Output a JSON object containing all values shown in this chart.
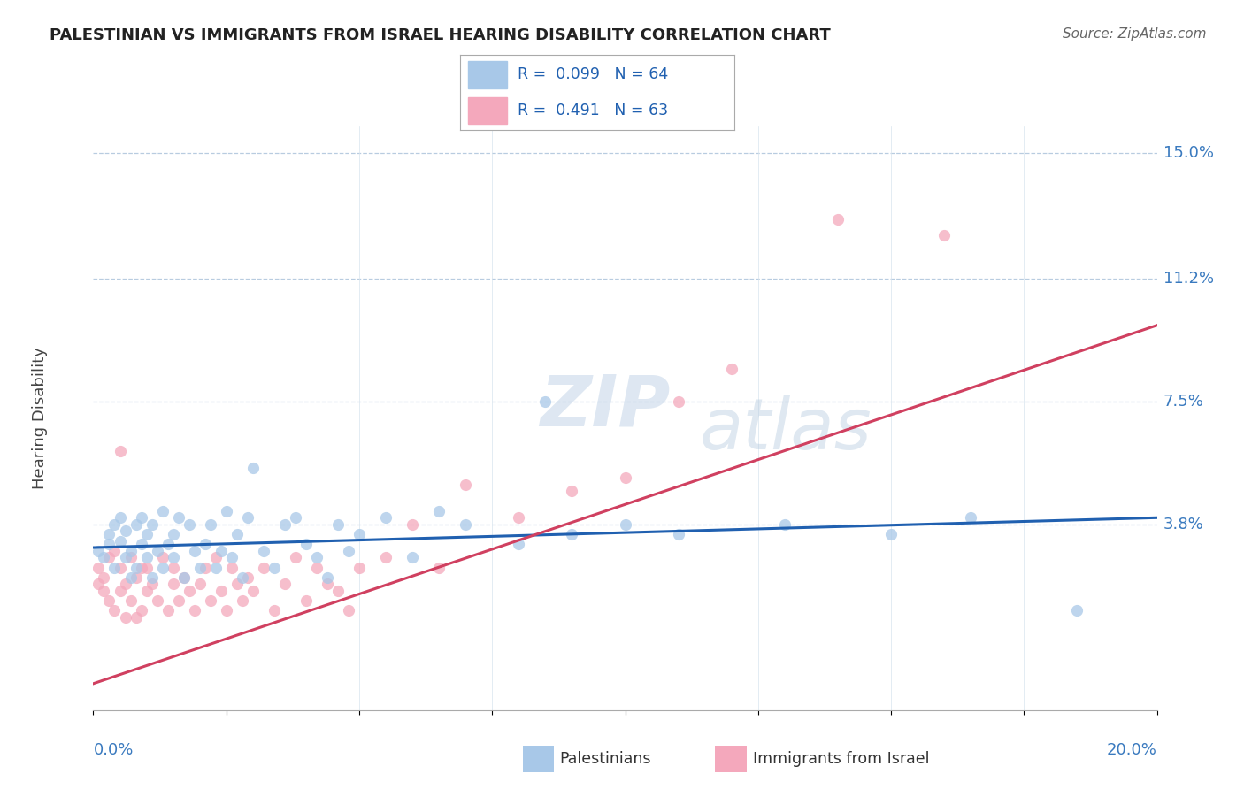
{
  "title": "PALESTINIAN VS IMMIGRANTS FROM ISRAEL HEARING DISABILITY CORRELATION CHART",
  "source": "Source: ZipAtlas.com",
  "ylabel": "Hearing Disability",
  "xmin": 0.0,
  "xmax": 0.2,
  "ymin": -0.018,
  "ymax": 0.158,
  "right_yticklabels": [
    "3.8%",
    "7.5%",
    "11.2%",
    "15.0%"
  ],
  "right_ytick_vals": [
    0.038,
    0.075,
    0.112,
    0.15
  ],
  "blue_color": "#a8c8e8",
  "pink_color": "#f4a8bc",
  "trend_blue": "#2060b0",
  "trend_pink": "#d04060",
  "watermark_zip": "ZIP",
  "watermark_atlas": "atlas",
  "blue_trend_x0": 0.0,
  "blue_trend_y0": 0.031,
  "blue_trend_x1": 0.2,
  "blue_trend_y1": 0.04,
  "pink_trend_x0": 0.0,
  "pink_trend_y0": -0.01,
  "pink_trend_x1": 0.2,
  "pink_trend_y1": 0.098,
  "legend_text_color": "#2060b0",
  "legend_r_color": "#333333",
  "blue_x": [
    0.001,
    0.002,
    0.003,
    0.003,
    0.004,
    0.004,
    0.005,
    0.005,
    0.006,
    0.006,
    0.007,
    0.007,
    0.008,
    0.008,
    0.009,
    0.009,
    0.01,
    0.01,
    0.011,
    0.011,
    0.012,
    0.013,
    0.013,
    0.014,
    0.015,
    0.015,
    0.016,
    0.017,
    0.018,
    0.019,
    0.02,
    0.021,
    0.022,
    0.023,
    0.024,
    0.025,
    0.026,
    0.027,
    0.028,
    0.029,
    0.03,
    0.032,
    0.034,
    0.036,
    0.038,
    0.04,
    0.042,
    0.044,
    0.046,
    0.048,
    0.05,
    0.055,
    0.06,
    0.065,
    0.07,
    0.08,
    0.085,
    0.09,
    0.1,
    0.11,
    0.13,
    0.15,
    0.165,
    0.185
  ],
  "blue_y": [
    0.03,
    0.028,
    0.032,
    0.035,
    0.025,
    0.038,
    0.04,
    0.033,
    0.028,
    0.036,
    0.022,
    0.03,
    0.038,
    0.025,
    0.032,
    0.04,
    0.028,
    0.035,
    0.022,
    0.038,
    0.03,
    0.025,
    0.042,
    0.032,
    0.028,
    0.035,
    0.04,
    0.022,
    0.038,
    0.03,
    0.025,
    0.032,
    0.038,
    0.025,
    0.03,
    0.042,
    0.028,
    0.035,
    0.022,
    0.04,
    0.055,
    0.03,
    0.025,
    0.038,
    0.04,
    0.032,
    0.028,
    0.022,
    0.038,
    0.03,
    0.035,
    0.04,
    0.028,
    0.042,
    0.038,
    0.032,
    0.075,
    0.035,
    0.038,
    0.035,
    0.038,
    0.035,
    0.04,
    0.012
  ],
  "pink_x": [
    0.001,
    0.001,
    0.002,
    0.002,
    0.003,
    0.003,
    0.004,
    0.004,
    0.005,
    0.005,
    0.006,
    0.006,
    0.007,
    0.007,
    0.008,
    0.008,
    0.009,
    0.009,
    0.01,
    0.01,
    0.011,
    0.012,
    0.013,
    0.014,
    0.015,
    0.015,
    0.016,
    0.017,
    0.018,
    0.019,
    0.02,
    0.021,
    0.022,
    0.023,
    0.024,
    0.025,
    0.026,
    0.027,
    0.028,
    0.029,
    0.03,
    0.032,
    0.034,
    0.036,
    0.038,
    0.04,
    0.042,
    0.044,
    0.046,
    0.048,
    0.05,
    0.055,
    0.06,
    0.065,
    0.07,
    0.08,
    0.09,
    0.1,
    0.11,
    0.12,
    0.14,
    0.16,
    0.005
  ],
  "pink_y": [
    0.025,
    0.02,
    0.018,
    0.022,
    0.028,
    0.015,
    0.03,
    0.012,
    0.025,
    0.018,
    0.02,
    0.01,
    0.028,
    0.015,
    0.022,
    0.01,
    0.025,
    0.012,
    0.018,
    0.025,
    0.02,
    0.015,
    0.028,
    0.012,
    0.02,
    0.025,
    0.015,
    0.022,
    0.018,
    0.012,
    0.02,
    0.025,
    0.015,
    0.028,
    0.018,
    0.012,
    0.025,
    0.02,
    0.015,
    0.022,
    0.018,
    0.025,
    0.012,
    0.02,
    0.028,
    0.015,
    0.025,
    0.02,
    0.018,
    0.012,
    0.025,
    0.028,
    0.038,
    0.025,
    0.05,
    0.04,
    0.048,
    0.052,
    0.075,
    0.085,
    0.13,
    0.125,
    0.06
  ]
}
